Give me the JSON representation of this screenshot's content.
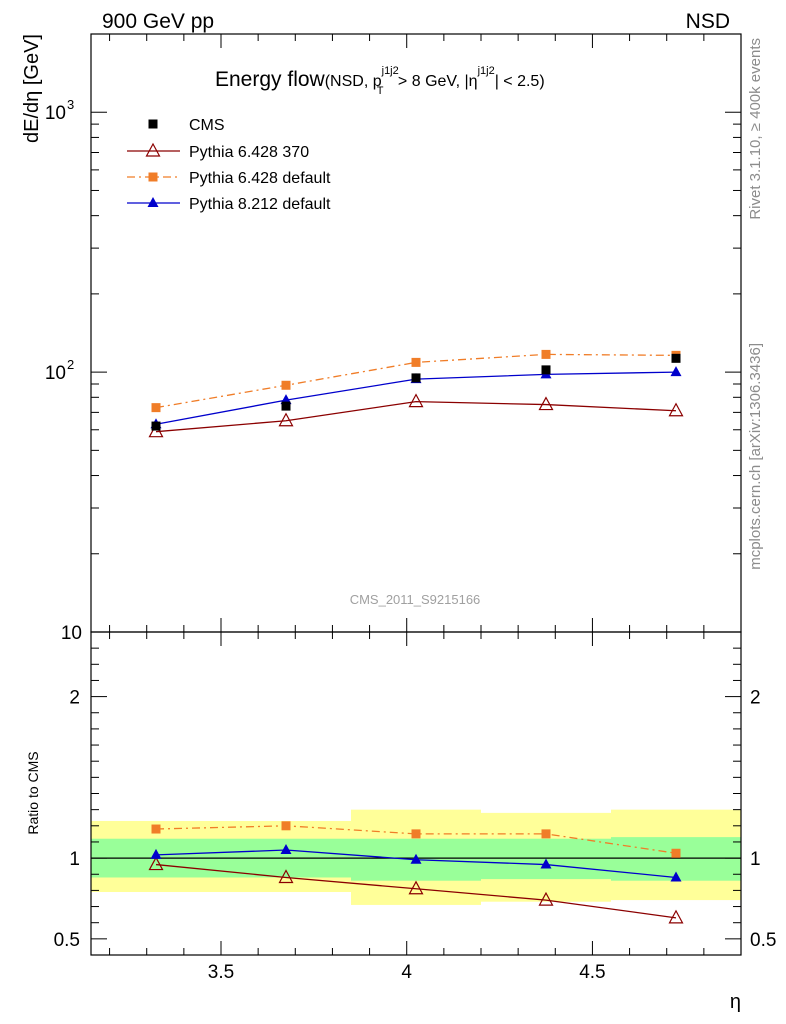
{
  "header": {
    "left": "900 GeV pp",
    "right": "NSD"
  },
  "title": {
    "main": "Energy flow",
    "paren_open": "(NSD, p",
    "pt_sup": "j1j2",
    "pt_sub": "T",
    "mid": " > 8 GeV, |η",
    "eta_sup": "j1j2",
    "end": "| < 2.5)"
  },
  "side_text": {
    "rivet": "Rivet 3.1.10, ≥ 400k events",
    "mcplots": "mcplots.cern.ch [arXiv:1306.3436]"
  },
  "watermark": "CMS_2011_S9215166",
  "chart_data": {
    "type": "line",
    "title": "Energy flow (NSD, pT j1j2 > 8 GeV, |η j1j2| < 2.5)",
    "xlabel": "η",
    "ylabel": "dE/dη [GeV]",
    "ratio_ylabel": "Ratio to CMS",
    "xlim": [
      3.15,
      4.9
    ],
    "ylim": [
      10,
      2000
    ],
    "yscale": "log",
    "ratio_ylim": [
      0.4,
      2.4
    ],
    "x": [
      3.325,
      3.675,
      4.025,
      4.375,
      4.725
    ],
    "bin_edges": [
      3.15,
      3.5,
      3.85,
      4.2,
      4.55,
      4.9
    ],
    "x_ticks": [
      "3.5",
      "4",
      "4.5"
    ],
    "x_tick_values": [
      3.5,
      4.0,
      4.5
    ],
    "y_tick_values": [
      10,
      100,
      1000
    ],
    "y_ticks": {
      "ten": "10",
      "base": "10",
      "exp2": "2",
      "exp3": "3"
    },
    "ratio_ticks": [
      "0.5",
      "1",
      "2"
    ],
    "ratio_tick_values": [
      0.5,
      1,
      2
    ],
    "series": [
      {
        "name": "CMS",
        "values": [
          62,
          74,
          95,
          102,
          113
        ],
        "color": "#000000",
        "marker": "square"
      },
      {
        "name": "Pythia 6.428 370",
        "values": [
          59,
          65,
          77,
          75,
          71
        ],
        "color": "#8b0000",
        "marker": "open-triangle",
        "dash": ""
      },
      {
        "name": "Pythia 6.428 default",
        "values": [
          73,
          89,
          109,
          117,
          116
        ],
        "color": "#f07d28",
        "marker": "square",
        "dash": "8,4,2,4"
      },
      {
        "name": "Pythia 8.212 default",
        "values": [
          63,
          78,
          94,
          98,
          100
        ],
        "color": "#0000cc",
        "marker": "triangle",
        "dash": ""
      }
    ],
    "ratio_series": [
      {
        "name": "Pythia 6.428 370",
        "values": [
          0.96,
          0.88,
          0.81,
          0.74,
          0.63
        ]
      },
      {
        "name": "Pythia 6.428 default",
        "values": [
          1.18,
          1.2,
          1.15,
          1.15,
          1.03
        ]
      },
      {
        "name": "Pythia 8.212 default",
        "values": [
          1.02,
          1.05,
          0.99,
          0.96,
          0.88
        ]
      }
    ],
    "bands": {
      "stat_color": "#99ff99",
      "total_color": "#ffff99",
      "stat": [
        [
          0.88,
          1.12
        ],
        [
          0.88,
          1.12
        ],
        [
          0.86,
          1.12
        ],
        [
          0.87,
          1.12
        ],
        [
          0.86,
          1.13
        ]
      ],
      "total": [
        [
          0.79,
          1.23
        ],
        [
          0.79,
          1.23
        ],
        [
          0.71,
          1.3
        ],
        [
          0.73,
          1.28
        ],
        [
          0.74,
          1.3
        ]
      ]
    }
  }
}
